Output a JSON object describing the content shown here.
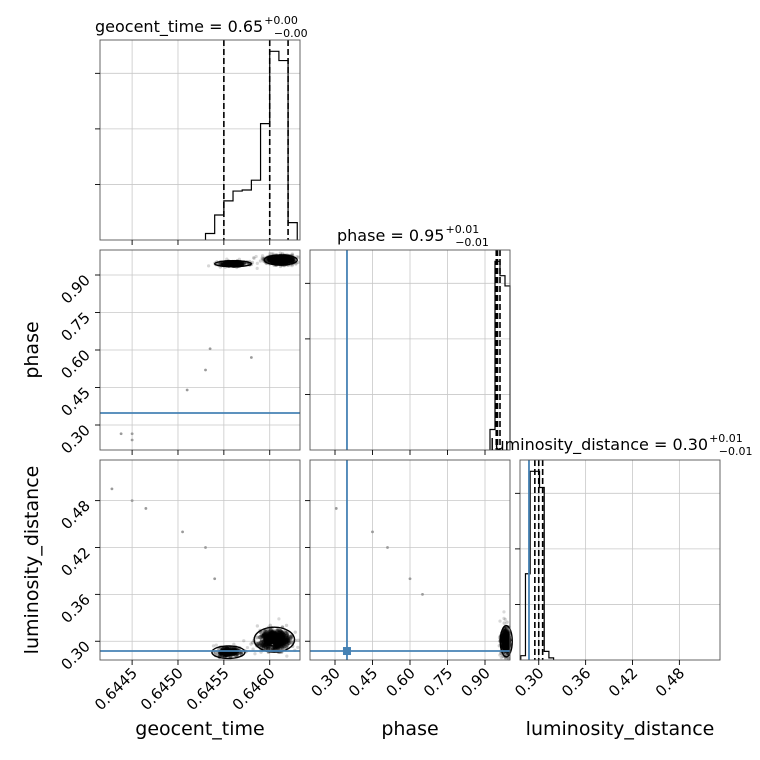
{
  "chart_data": {
    "type": "corner",
    "parameters": [
      {
        "name": "geocent_time",
        "title_prefix": "geocent_time = 0.65",
        "title_plus": "+0.00",
        "title_minus": "−0.00",
        "axis_range": [
          0.64415,
          0.64633
        ],
        "ticks": [
          0.6445,
          0.645,
          0.6455,
          0.646
        ],
        "tick_labels": [
          "0.6445",
          "0.6450",
          "0.6455",
          "0.6460"
        ],
        "quantiles": [
          0.6455,
          0.646,
          0.6462
        ],
        "histogram": {
          "edges": [
            0.6453,
            0.6454,
            0.6455,
            0.6456,
            0.6457,
            0.6458,
            0.6459,
            0.646,
            0.6461,
            0.6462,
            0.6463
          ],
          "counts": [
            0.12,
            0.46,
            0.72,
            0.9,
            0.92,
            1.1,
            2.14,
            3.47,
            3.3,
            0.32
          ]
        }
      },
      {
        "name": "phase",
        "title_prefix": "phase = 0.95",
        "title_plus": "+0.01",
        "title_minus": "−0.01",
        "axis_range": [
          0.2,
          1.0
        ],
        "ticks": [
          0.3,
          0.45,
          0.6,
          0.75,
          0.9
        ],
        "tick_labels": [
          "0.30",
          "0.45",
          "0.60",
          "0.75",
          "0.90"
        ],
        "truth": 0.3479,
        "quantiles": [
          0.945,
          0.95,
          0.96
        ],
        "histogram": {
          "edges": [
            0.92,
            0.94,
            0.96,
            0.98,
            1.0
          ],
          "counts": [
            0.1,
            0.92,
            0.85,
            0.8
          ]
        }
      },
      {
        "name": "luminosity_distance",
        "title_prefix": "luminosity_distance = 0.30",
        "title_plus": "+0.01",
        "title_minus": "−0.01",
        "axis_range": [
          0.276,
          0.532
        ],
        "ticks": [
          0.3,
          0.36,
          0.42,
          0.48
        ],
        "tick_labels": [
          "0.30",
          "0.36",
          "0.42",
          "0.48"
        ],
        "truth": 0.2875,
        "quantiles": [
          0.295,
          0.3,
          0.305
        ],
        "histogram": {
          "edges": [
            0.277,
            0.283,
            0.289,
            0.295,
            0.301,
            0.307,
            0.313,
            0.319
          ],
          "counts": [
            0.04,
            0.8,
            1.75,
            1.75,
            1.6,
            0.08,
            0.02
          ]
        }
      }
    ],
    "density_clusters": [
      {
        "panel": "geocent_time_vs_phase",
        "x": 0.64612,
        "y": 0.96,
        "sx": 9e-05,
        "sy": 0.01,
        "n": 320
      },
      {
        "panel": "geocent_time_vs_phase",
        "x": 0.6456,
        "y": 0.945,
        "sx": 0.0001,
        "sy": 0.006,
        "n": 90
      },
      {
        "panel": "geocent_time_vs_luminosity_distance",
        "x": 0.64605,
        "y": 0.302,
        "sx": 0.00011,
        "sy": 0.008,
        "n": 300
      },
      {
        "panel": "geocent_time_vs_luminosity_distance",
        "x": 0.64555,
        "y": 0.286,
        "sx": 9e-05,
        "sy": 0.004,
        "n": 80
      },
      {
        "panel": "phase_vs_luminosity_distance",
        "x": 0.985,
        "y": 0.3,
        "sx": 0.012,
        "sy": 0.01,
        "n": 260
      }
    ],
    "stray_points": [
      {
        "panel": "geocent_time_vs_phase",
        "x": 0.64438,
        "y": 0.265
      },
      {
        "panel": "geocent_time_vs_phase",
        "x": 0.6445,
        "y": 0.24
      },
      {
        "panel": "geocent_time_vs_phase",
        "x": 0.6445,
        "y": 0.265
      },
      {
        "panel": "geocent_time_vs_phase",
        "x": 0.6451,
        "y": 0.44
      },
      {
        "panel": "geocent_time_vs_phase",
        "x": 0.6453,
        "y": 0.52
      },
      {
        "panel": "geocent_time_vs_phase",
        "x": 0.64535,
        "y": 0.605
      },
      {
        "panel": "geocent_time_vs_phase",
        "x": 0.6458,
        "y": 0.57
      },
      {
        "panel": "geocent_time_vs_luminosity_distance",
        "x": 0.64428,
        "y": 0.495
      },
      {
        "panel": "geocent_time_vs_luminosity_distance",
        "x": 0.6445,
        "y": 0.48
      },
      {
        "panel": "geocent_time_vs_luminosity_distance",
        "x": 0.64465,
        "y": 0.47
      },
      {
        "panel": "geocent_time_vs_luminosity_distance",
        "x": 0.64505,
        "y": 0.44
      },
      {
        "panel": "geocent_time_vs_luminosity_distance",
        "x": 0.6453,
        "y": 0.42
      },
      {
        "panel": "geocent_time_vs_luminosity_distance",
        "x": 0.6454,
        "y": 0.38
      },
      {
        "panel": "phase_vs_luminosity_distance",
        "x": 0.305,
        "y": 0.47
      },
      {
        "panel": "phase_vs_luminosity_distance",
        "x": 0.45,
        "y": 0.44
      },
      {
        "panel": "phase_vs_luminosity_distance",
        "x": 0.51,
        "y": 0.42
      },
      {
        "panel": "phase_vs_luminosity_distance",
        "x": 0.6,
        "y": 0.38
      },
      {
        "panel": "phase_vs_luminosity_distance",
        "x": 0.65,
        "y": 0.36
      }
    ],
    "grid": true
  }
}
